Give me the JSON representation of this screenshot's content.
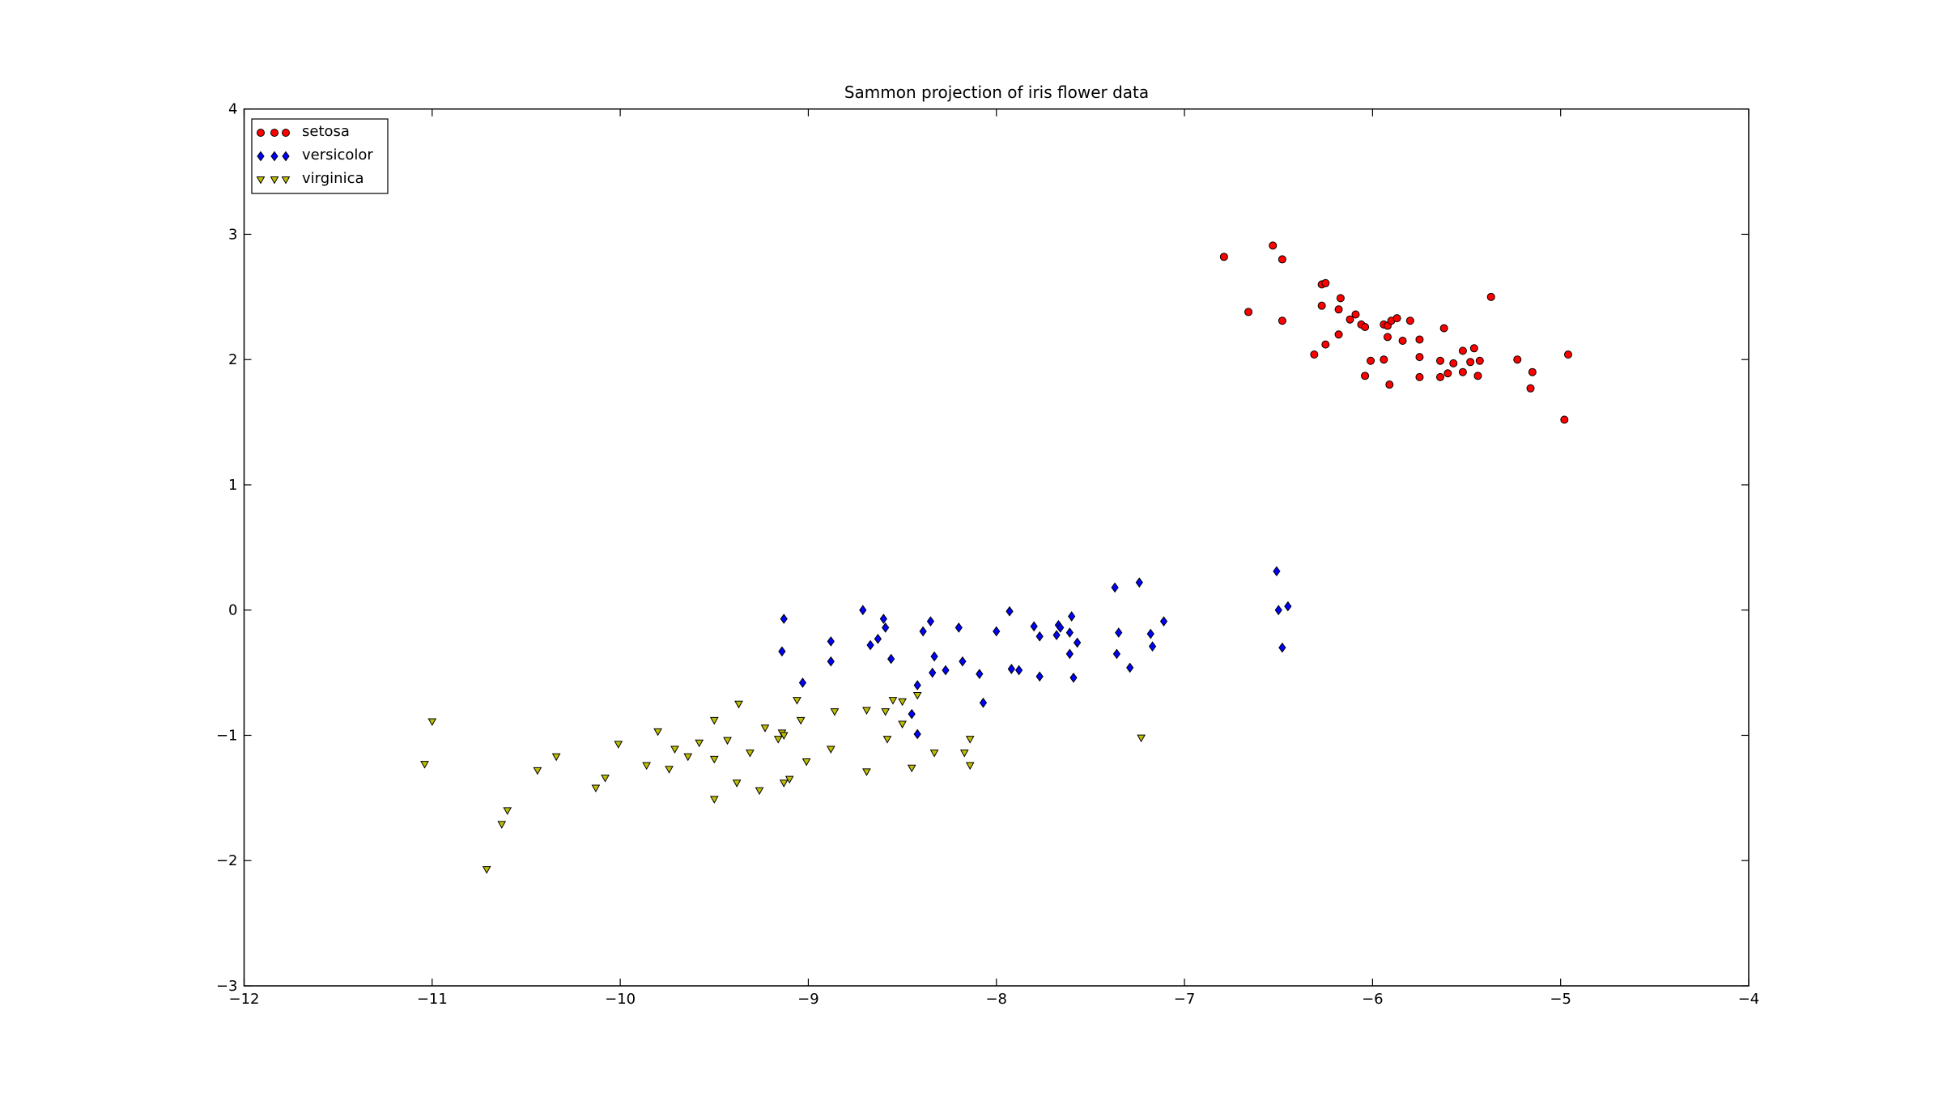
{
  "chart_data": {
    "type": "scatter",
    "title": "Sammon projection of iris flower data",
    "xlim": [
      -12,
      -4
    ],
    "xticks": [
      {
        "value": -12,
        "label": "−12"
      },
      {
        "value": -11,
        "label": "−11"
      },
      {
        "value": -10,
        "label": "−10"
      },
      {
        "value": -9,
        "label": "−9"
      },
      {
        "value": -8,
        "label": "−8"
      },
      {
        "value": -7,
        "label": "−7"
      },
      {
        "value": -6,
        "label": "−6"
      },
      {
        "value": -5,
        "label": "−5"
      },
      {
        "value": -4,
        "label": "−4"
      }
    ],
    "ylim": [
      -3,
      4
    ],
    "yticks": [
      {
        "value": -3,
        "label": "−3"
      },
      {
        "value": -2,
        "label": "−2"
      },
      {
        "value": -1,
        "label": "−1"
      },
      0,
      1,
      2,
      3,
      4
    ],
    "grid": false,
    "legend": "upper left",
    "series": [
      {
        "name": "setosa",
        "color": "#ff0000",
        "marker": "circle",
        "x": [
          -6.79,
          -6.53,
          -6.48,
          -6.66,
          -6.48,
          -6.27,
          -6.25,
          -6.27,
          -6.17,
          -6.18,
          -6.12,
          -6.09,
          -6.06,
          -6.04,
          -5.94,
          -5.92,
          -5.9,
          -5.87,
          -5.8,
          -5.92,
          -5.84,
          -5.75,
          -6.18,
          -6.25,
          -6.31,
          -6.01,
          -5.94,
          -6.04,
          -5.91,
          -5.75,
          -5.75,
          -5.62,
          -5.64,
          -5.64,
          -5.6,
          -5.57,
          -5.52,
          -5.52,
          -5.48,
          -5.46,
          -5.44,
          -5.43,
          -5.37,
          -5.23,
          -5.16,
          -5.15,
          -4.98,
          -4.96
        ],
        "y": [
          2.82,
          2.91,
          2.8,
          2.38,
          2.31,
          2.6,
          2.61,
          2.43,
          2.49,
          2.4,
          2.32,
          2.36,
          2.28,
          2.26,
          2.28,
          2.27,
          2.31,
          2.33,
          2.31,
          2.18,
          2.15,
          2.16,
          2.2,
          2.12,
          2.04,
          1.99,
          2.0,
          1.87,
          1.8,
          2.02,
          1.86,
          2.25,
          1.99,
          1.86,
          1.89,
          1.97,
          2.07,
          1.9,
          1.98,
          2.09,
          1.87,
          1.99,
          2.5,
          2.0,
          1.77,
          1.9,
          1.52,
          2.04
        ]
      },
      {
        "name": "versicolor",
        "color": "#0000ff",
        "marker": "diamond",
        "x": [
          -6.51,
          -6.5,
          -6.45,
          -6.48,
          -7.24,
          -7.37,
          -7.35,
          -7.36,
          -7.29,
          -7.18,
          -7.17,
          -7.11,
          -7.6,
          -7.67,
          -7.66,
          -7.68,
          -7.61,
          -7.57,
          -7.61,
          -7.59,
          -7.8,
          -7.77,
          -7.77,
          -7.93,
          -8.0,
          -7.92,
          -7.88,
          -8.2,
          -8.18,
          -8.09,
          -8.07,
          -8.35,
          -8.39,
          -8.33,
          -8.34,
          -8.27,
          -8.42,
          -8.45,
          -8.42,
          -8.71,
          -8.6,
          -8.59,
          -8.63,
          -8.67,
          -8.56,
          -8.88,
          -8.88,
          -9.13,
          -9.14,
          -9.03
        ],
        "y": [
          0.31,
          0.0,
          0.03,
          -0.3,
          0.22,
          0.18,
          -0.18,
          -0.35,
          -0.46,
          -0.19,
          -0.29,
          -0.09,
          -0.05,
          -0.12,
          -0.14,
          -0.2,
          -0.18,
          -0.26,
          -0.35,
          -0.54,
          -0.13,
          -0.21,
          -0.53,
          -0.01,
          -0.17,
          -0.47,
          -0.48,
          -0.14,
          -0.41,
          -0.51,
          -0.74,
          -0.09,
          -0.17,
          -0.37,
          -0.5,
          -0.48,
          -0.6,
          -0.83,
          -0.99,
          0.0,
          -0.07,
          -0.14,
          -0.23,
          -0.28,
          -0.39,
          -0.25,
          -0.41,
          -0.07,
          -0.33,
          -0.58
        ]
      },
      {
        "name": "virginica",
        "color": "#bfbf00",
        "marker": "triangle-down",
        "x": [
          -7.23,
          -11.0,
          -11.04,
          -10.71,
          -10.6,
          -10.63,
          -10.44,
          -10.34,
          -10.13,
          -10.08,
          -10.01,
          -9.86,
          -9.8,
          -9.74,
          -9.71,
          -9.64,
          -9.58,
          -9.5,
          -9.5,
          -9.5,
          -9.43,
          -9.37,
          -9.38,
          -9.31,
          -9.26,
          -9.23,
          -9.16,
          -9.14,
          -9.13,
          -9.13,
          -9.1,
          -9.06,
          -9.04,
          -9.01,
          -8.88,
          -8.86,
          -8.69,
          -8.69,
          -8.59,
          -8.58,
          -8.55,
          -8.5,
          -8.5,
          -8.42,
          -8.45,
          -8.33,
          -8.17,
          -8.14,
          -8.14
        ],
        "y": [
          -1.02,
          -0.89,
          -1.23,
          -2.07,
          -1.6,
          -1.71,
          -1.28,
          -1.17,
          -1.42,
          -1.34,
          -1.07,
          -1.24,
          -0.97,
          -1.27,
          -1.11,
          -1.17,
          -1.06,
          -0.88,
          -1.19,
          -1.51,
          -1.04,
          -0.75,
          -1.38,
          -1.14,
          -1.44,
          -0.94,
          -1.03,
          -0.98,
          -1.0,
          -1.38,
          -1.35,
          -0.72,
          -0.88,
          -1.21,
          -1.11,
          -0.81,
          -0.8,
          -1.29,
          -0.81,
          -1.03,
          -0.72,
          -0.73,
          -0.91,
          -0.68,
          -1.26,
          -1.14,
          -1.14,
          -1.03,
          -1.24
        ]
      }
    ]
  }
}
